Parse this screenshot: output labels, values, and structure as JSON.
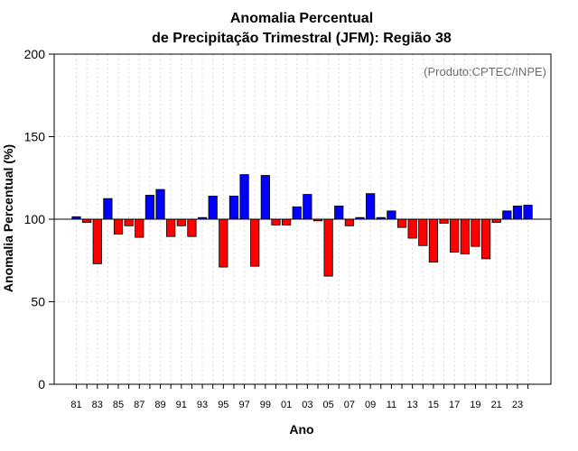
{
  "chart_data": {
    "type": "bar",
    "title_line1": "Anomalia Percentual",
    "title_line2": "de Precipitação Trimestral (JFM): Região 38",
    "xlabel": "Ano",
    "ylabel": "Anomalia Percentual (%)",
    "source": "(Produto:CPTEC/INPE)",
    "ylim": [
      0,
      200
    ],
    "yticks": [
      "0",
      "50",
      "100",
      "150",
      "200"
    ],
    "baseline": 100,
    "colors": {
      "above": "#0000ff",
      "below": "#ff0000",
      "edge": "#000000",
      "grid": "#d9d9d9"
    },
    "x_tick_labels": [
      "81",
      "83",
      "85",
      "87",
      "89",
      "91",
      "93",
      "95",
      "97",
      "99",
      "01",
      "03",
      "05",
      "07",
      "09",
      "11",
      "13",
      "15",
      "17",
      "19",
      "21",
      "23"
    ],
    "categories": [
      "1981",
      "1982",
      "1983",
      "1984",
      "1985",
      "1986",
      "1987",
      "1988",
      "1989",
      "1990",
      "1991",
      "1992",
      "1993",
      "1994",
      "1995",
      "1996",
      "1997",
      "1998",
      "1999",
      "2000",
      "2001",
      "2002",
      "2003",
      "2004",
      "2005",
      "2006",
      "2007",
      "2008",
      "2009",
      "2010",
      "2011",
      "2012",
      "2013",
      "2014",
      "2015",
      "2016",
      "2017",
      "2018",
      "2019",
      "2020",
      "2021",
      "2022",
      "2023",
      "2024"
    ],
    "values": [
      101.5,
      98,
      73,
      112.5,
      91,
      96,
      89,
      114.5,
      118,
      89.5,
      96,
      89.5,
      101,
      114,
      71,
      114,
      127,
      71.5,
      126.5,
      96.5,
      96.5,
      107.5,
      115,
      99,
      65.5,
      108,
      96,
      101,
      115.5,
      101,
      105,
      95,
      88.5,
      84,
      74,
      97.5,
      80,
      79,
      83.5,
      76,
      98,
      105,
      108,
      108.5
    ]
  }
}
